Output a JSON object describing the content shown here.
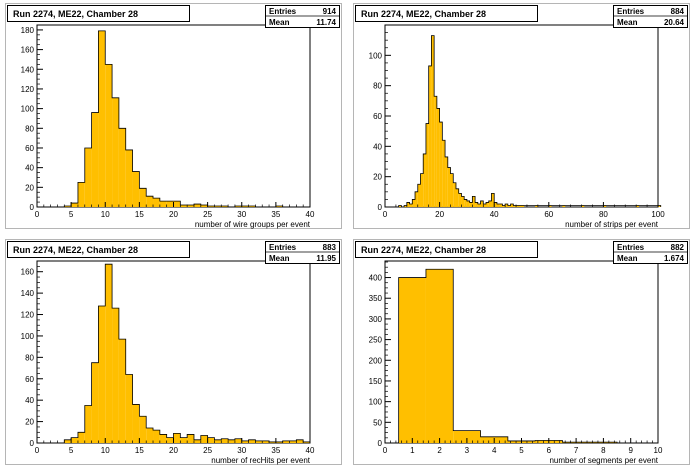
{
  "colors": {
    "fill": "#ffbf00",
    "line": "#000000",
    "frame_bg": "#ffffff"
  },
  "stats_labels": {
    "entries": "Entries",
    "mean": "Mean"
  },
  "chart_data": [
    {
      "type": "bar",
      "title": "Run 2274, ME22, Chamber 28",
      "xlabel": "number of wire groups per event",
      "ylabel": "",
      "entries": "914",
      "mean": "11.74",
      "xlim": [
        0,
        40
      ],
      "ylim": [
        0,
        185
      ],
      "xticks": [
        0,
        5,
        10,
        15,
        20,
        25,
        30,
        35,
        40
      ],
      "yticks": [
        0,
        20,
        40,
        60,
        80,
        100,
        120,
        140,
        160,
        180
      ],
      "bin_width": 1,
      "bins": [
        0,
        1,
        2,
        3,
        4,
        5,
        6,
        7,
        8,
        9,
        10,
        11,
        12,
        13,
        14,
        15,
        16,
        17,
        18,
        19,
        20,
        21,
        22,
        23,
        24,
        25,
        26,
        27,
        28,
        29,
        30,
        31,
        32,
        33,
        34,
        35,
        36,
        37,
        38,
        39
      ],
      "values": [
        0,
        0,
        0,
        0,
        1,
        4,
        25,
        60,
        96,
        179,
        145,
        111,
        80,
        58,
        36,
        19,
        11,
        9,
        6,
        6,
        6,
        2,
        2,
        3,
        2,
        1,
        1,
        1,
        0,
        1,
        1,
        1,
        0,
        0,
        0,
        1,
        0,
        0,
        0,
        0
      ]
    },
    {
      "type": "bar",
      "title": "Run 2274, ME22, Chamber 28",
      "xlabel": "number of strips per event",
      "ylabel": "",
      "entries": "884",
      "mean": "20.64",
      "xlim": [
        0,
        100
      ],
      "ylim": [
        0,
        120
      ],
      "xticks": [
        0,
        20,
        40,
        60,
        80,
        100
      ],
      "yticks": [
        0,
        20,
        40,
        60,
        80,
        100
      ],
      "bin_width": 1,
      "bins": [
        5,
        6,
        7,
        8,
        9,
        10,
        11,
        12,
        13,
        14,
        15,
        16,
        17,
        18,
        19,
        20,
        21,
        22,
        23,
        24,
        25,
        26,
        27,
        28,
        29,
        30,
        31,
        32,
        33,
        34,
        35,
        36,
        37,
        38,
        39,
        40,
        41,
        42,
        43,
        44,
        45,
        46,
        47,
        48,
        49,
        50,
        55,
        60,
        65,
        72,
        80,
        92,
        100
      ],
      "values": [
        1,
        0,
        1,
        3,
        2,
        5,
        10,
        15,
        22,
        35,
        55,
        93,
        113,
        73,
        65,
        56,
        44,
        33,
        26,
        22,
        16,
        12,
        9,
        7,
        5,
        4,
        3,
        7,
        3,
        2,
        4,
        2,
        3,
        4,
        9,
        3,
        2,
        2,
        1,
        2,
        1,
        2,
        1,
        1,
        1,
        1,
        1,
        1,
        1,
        1,
        1,
        1,
        1
      ]
    },
    {
      "type": "bar",
      "title": "Run 2274, ME22, Chamber 28",
      "xlabel": "number of recHits per event",
      "ylabel": "",
      "entries": "883",
      "mean": "11.95",
      "xlim": [
        0,
        40
      ],
      "ylim": [
        0,
        170
      ],
      "xticks": [
        0,
        5,
        10,
        15,
        20,
        25,
        30,
        35,
        40
      ],
      "yticks": [
        0,
        20,
        40,
        60,
        80,
        100,
        120,
        140,
        160
      ],
      "bin_width": 1,
      "bins": [
        0,
        1,
        2,
        3,
        4,
        5,
        6,
        7,
        8,
        9,
        10,
        11,
        12,
        13,
        14,
        15,
        16,
        17,
        18,
        19,
        20,
        21,
        22,
        23,
        24,
        25,
        26,
        27,
        28,
        29,
        30,
        31,
        32,
        33,
        34,
        35,
        36,
        37,
        38,
        39
      ],
      "values": [
        0,
        0,
        0,
        0,
        3,
        5,
        10,
        35,
        75,
        128,
        167,
        126,
        97,
        64,
        36,
        25,
        14,
        12,
        8,
        5,
        9,
        5,
        8,
        3,
        7,
        5,
        3,
        4,
        3,
        4,
        2,
        3,
        2,
        2,
        1,
        1,
        2,
        2,
        3,
        1
      ]
    },
    {
      "type": "bar",
      "title": "Run 2274, ME22, Chamber 28",
      "xlabel": "number of segments per event",
      "ylabel": "",
      "entries": "882",
      "mean": "1.674",
      "xlim": [
        0,
        10
      ],
      "ylim": [
        0,
        440
      ],
      "xticks": [
        0,
        1,
        2,
        3,
        4,
        5,
        6,
        7,
        8,
        9,
        10
      ],
      "yticks": [
        0,
        50,
        100,
        150,
        200,
        250,
        300,
        350,
        400
      ],
      "bin_width": 1,
      "bins": [
        0.5,
        1.5,
        2.5,
        3.5,
        4.5,
        5.5,
        6.5,
        7.5,
        8.5
      ],
      "values": [
        400,
        420,
        30,
        15,
        5,
        6,
        2,
        2,
        0
      ]
    }
  ]
}
